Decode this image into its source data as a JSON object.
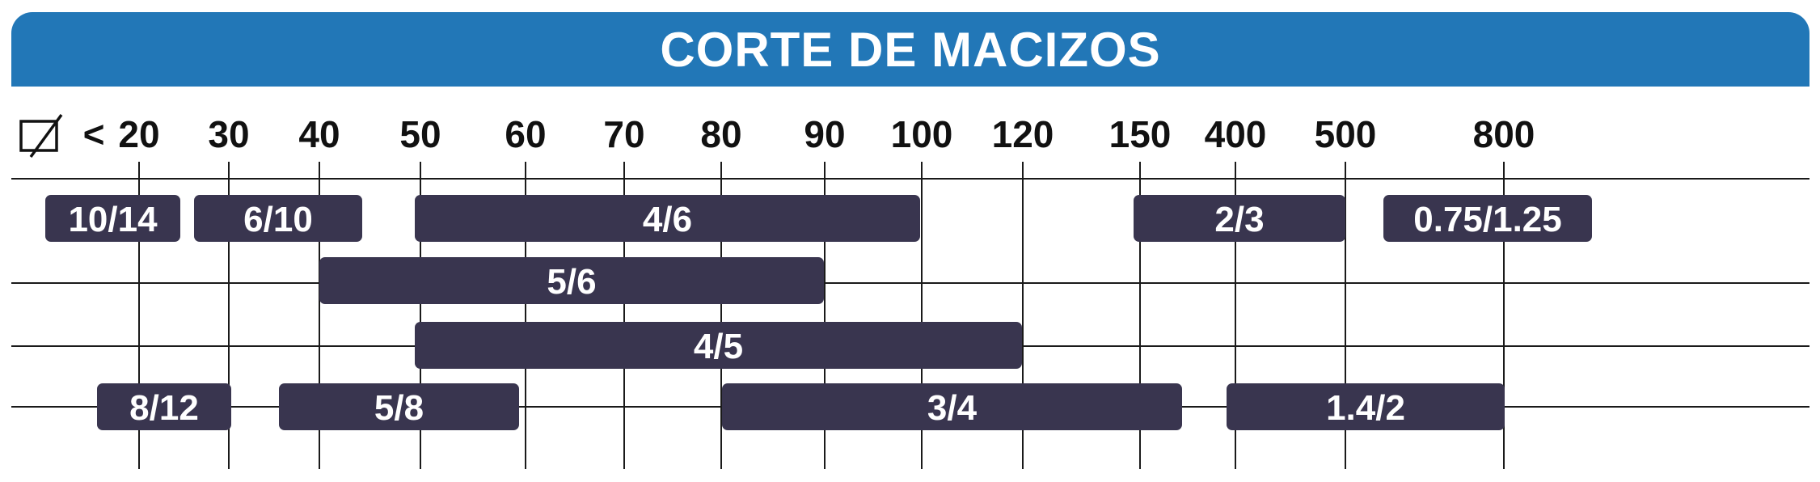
{
  "header": {
    "title": "CORTE DE MACIZOS"
  },
  "icons": {
    "diameter": "diameter-icon"
  },
  "colors": {
    "header_bg": "#2277b7",
    "bar_fill": "#39354f",
    "bar_text": "#ffffff",
    "lines": "#1a1a1a"
  },
  "chart_data": {
    "type": "bar",
    "orientation": "horizontal-range",
    "axis_prefix": "<",
    "ticks": [
      "20",
      "30",
      "40",
      "50",
      "60",
      "70",
      "80",
      "90",
      "100",
      "120",
      "150",
      "400",
      "500",
      "800"
    ],
    "rows": [
      [
        {
          "label": "10/14",
          "start": "<20",
          "end": "20"
        },
        {
          "label": "6/10",
          "start": "30",
          "end": "40"
        },
        {
          "label": "4/6",
          "start": "50",
          "end": "100"
        },
        {
          "label": "2/3",
          "start": "150",
          "end": "500"
        },
        {
          "label": "0.75/1.25",
          "start": "500",
          "end": "800"
        }
      ],
      [
        {
          "label": "5/6",
          "start": "40",
          "end": "90"
        }
      ],
      [
        {
          "label": "4/5",
          "start": "50",
          "end": "120"
        }
      ],
      [
        {
          "label": "8/12",
          "start": "20",
          "end": "30"
        },
        {
          "label": "5/8",
          "start": "40",
          "end": "60"
        },
        {
          "label": "3/4",
          "start": "80",
          "end": "150"
        },
        {
          "label": "1.4/2",
          "start": "400",
          "end": "800"
        }
      ]
    ]
  }
}
